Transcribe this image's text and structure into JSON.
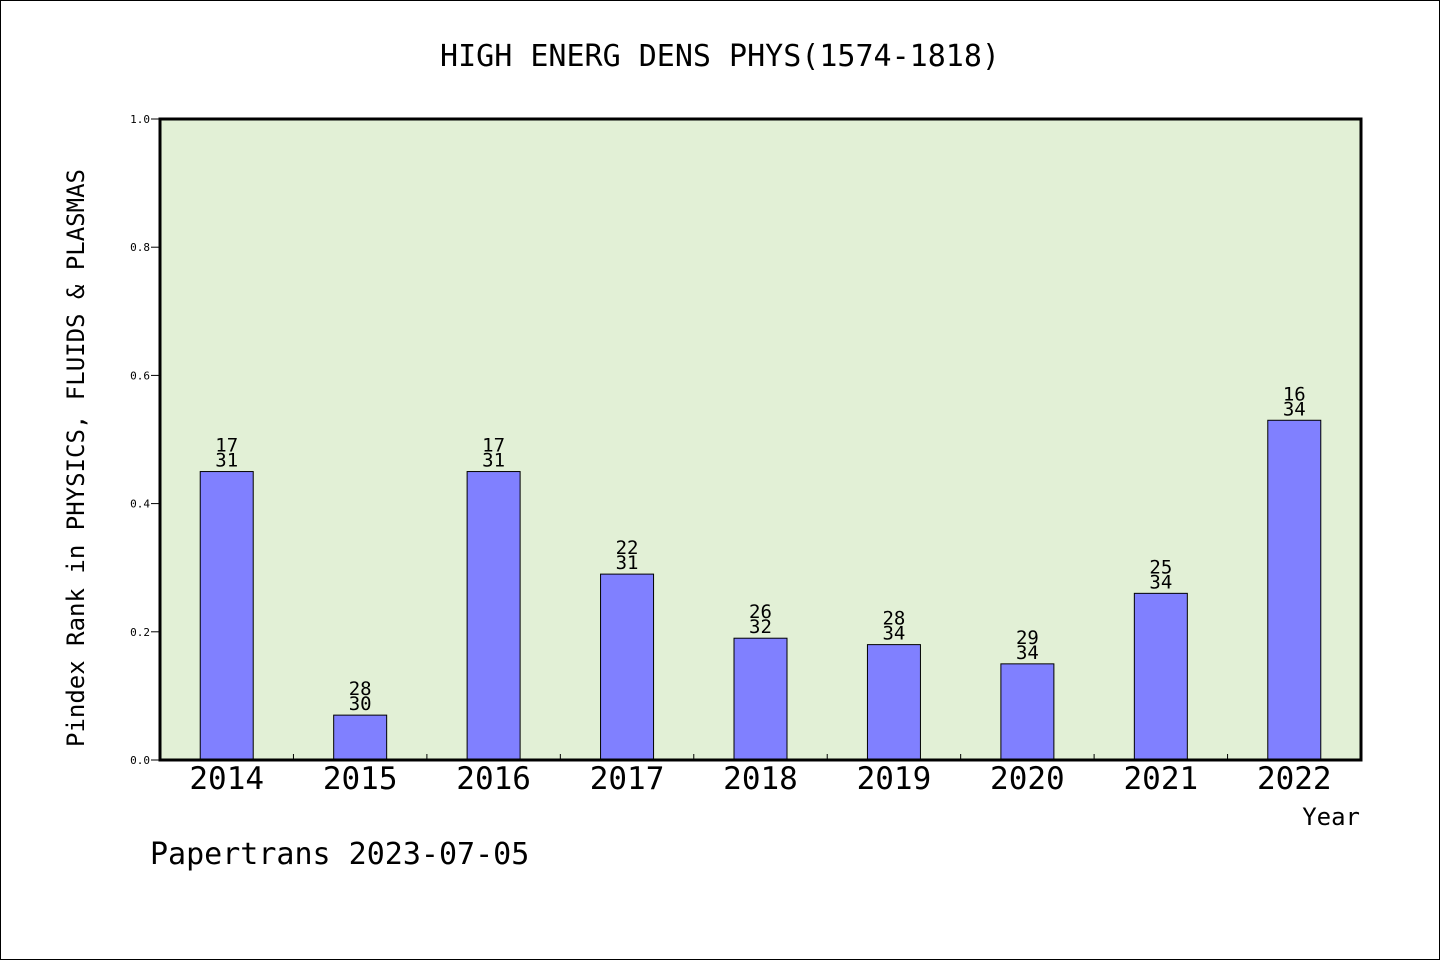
{
  "chart_data": {
    "type": "bar",
    "title": "HIGH ENERG DENS PHYS(1574-1818)",
    "xlabel": "Year",
    "ylabel": "Pindex Rank in PHYSICS, FLUIDS & PLASMAS",
    "ylim": [
      0,
      1.0
    ],
    "yticks": [
      "0.0",
      "0.2",
      "0.4",
      "0.6",
      "0.8",
      "1.0"
    ],
    "categories": [
      "2014",
      "2015",
      "2016",
      "2017",
      "2018",
      "2019",
      "2020",
      "2021",
      "2022"
    ],
    "values": [
      0.45,
      0.07,
      0.45,
      0.29,
      0.19,
      0.18,
      0.15,
      0.26,
      0.53
    ],
    "rank": [
      "17",
      "28",
      "17",
      "22",
      "26",
      "28",
      "29",
      "25",
      "16"
    ],
    "total": [
      "31",
      "30",
      "31",
      "31",
      "32",
      "34",
      "34",
      "34",
      "34"
    ],
    "grid": false,
    "legend": "none",
    "bar_color": "#8080ff",
    "plot_background": "#e2f0d6"
  },
  "footer": "Papertrans 2023-07-05"
}
